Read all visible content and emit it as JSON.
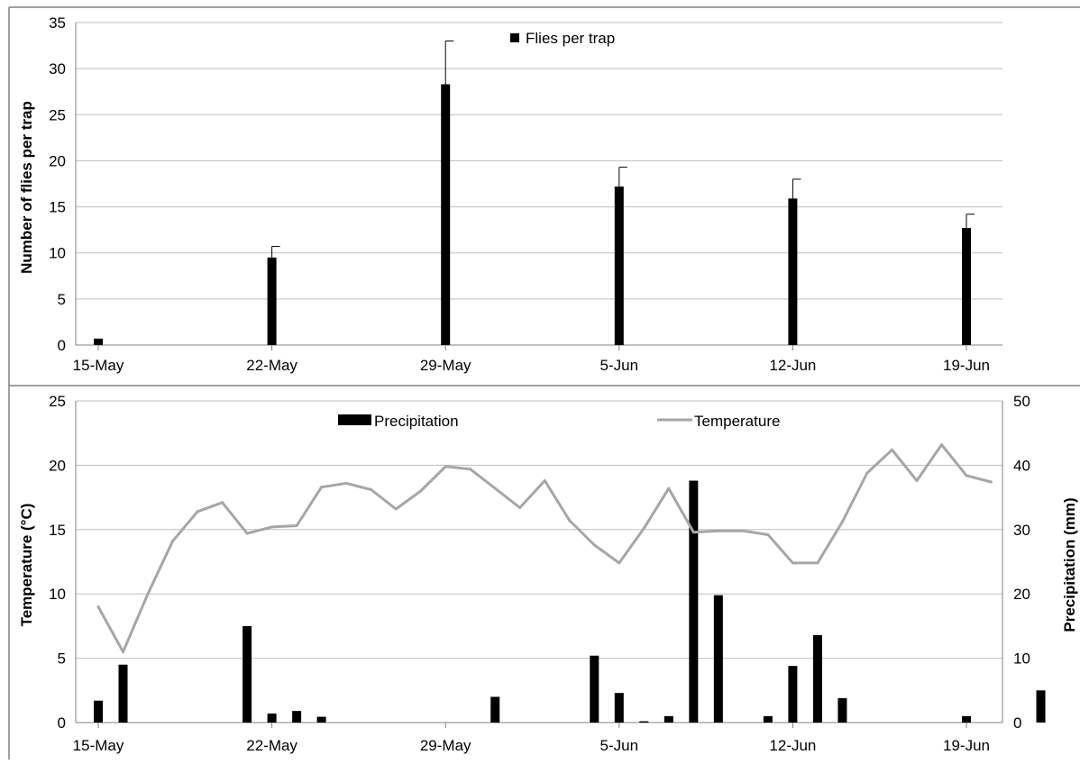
{
  "chart_data": [
    {
      "type": "bar",
      "title": "",
      "ylabel": "Number of flies per trap",
      "ylim": [
        0,
        35
      ],
      "yticks": [
        0,
        5,
        10,
        15,
        20,
        25,
        30,
        35
      ],
      "xticks": [
        "15-May",
        "22-May",
        "29-May",
        "5-Jun",
        "12-Jun",
        "19-Jun"
      ],
      "legend": {
        "placement": "top-center"
      },
      "grid": true,
      "series": [
        {
          "name": "Flies per trap",
          "color": "#000000",
          "points": [
            {
              "x": "15-May",
              "y": 0.7,
              "error": 0
            },
            {
              "x": "22-May",
              "y": 9.5,
              "error": 1.2
            },
            {
              "x": "29-May",
              "y": 28.3,
              "error": 4.7
            },
            {
              "x": "5-Jun",
              "y": 17.2,
              "error": 2.1
            },
            {
              "x": "12-Jun",
              "y": 15.9,
              "error": 2.1
            },
            {
              "x": "19-Jun",
              "y": 12.7,
              "error": 1.5
            }
          ]
        }
      ]
    },
    {
      "type": "bar+line",
      "title": "",
      "ylabel": "Temperature (°C)",
      "y2label": "Precipitation (mm)",
      "ylim": [
        0,
        25
      ],
      "y2lim": [
        0,
        50
      ],
      "yticks": [
        0,
        5,
        10,
        15,
        20,
        25
      ],
      "y2ticks": [
        0,
        10,
        20,
        30,
        40,
        50
      ],
      "xticks": [
        "15-May",
        "22-May",
        "29-May",
        "5-Jun",
        "12-Jun",
        "19-Jun"
      ],
      "legend": {
        "placement": "top-center"
      },
      "grid": true,
      "series": [
        {
          "name": "Precipitation",
          "kind": "bar",
          "axis": "y2",
          "color": "#000000",
          "points": [
            {
              "x": "15-May",
              "y": 3.4
            },
            {
              "x": "16-May",
              "y": 9.0
            },
            {
              "x": "21-May",
              "y": 15.0
            },
            {
              "x": "22-May",
              "y": 1.4
            },
            {
              "x": "23-May",
              "y": 1.8
            },
            {
              "x": "24-May",
              "y": 0.9
            },
            {
              "x": "31-May",
              "y": 4.0
            },
            {
              "x": "4-Jun",
              "y": 10.4
            },
            {
              "x": "5-Jun",
              "y": 4.6
            },
            {
              "x": "6-Jun",
              "y": 0.2
            },
            {
              "x": "7-Jun",
              "y": 1.0
            },
            {
              "x": "8-Jun",
              "y": 37.6
            },
            {
              "x": "9-Jun",
              "y": 19.8
            },
            {
              "x": "11-Jun",
              "y": 1.0
            },
            {
              "x": "12-Jun",
              "y": 8.8
            },
            {
              "x": "13-Jun",
              "y": 13.6
            },
            {
              "x": "14-Jun",
              "y": 3.8
            },
            {
              "x": "19-Jun",
              "y": 1.0
            },
            {
              "x": "22-Jun",
              "y": 5.0
            }
          ]
        },
        {
          "name": "Temperature",
          "kind": "line",
          "axis": "y",
          "color": "#a6a6a6",
          "points": [
            {
              "x": "15-May",
              "y": 9.0
            },
            {
              "x": "16-May",
              "y": 5.5
            },
            {
              "x": "17-May",
              "y": 10.0
            },
            {
              "x": "18-May",
              "y": 14.1
            },
            {
              "x": "19-May",
              "y": 16.4
            },
            {
              "x": "20-May",
              "y": 17.1
            },
            {
              "x": "21-May",
              "y": 14.7
            },
            {
              "x": "22-May",
              "y": 15.2
            },
            {
              "x": "23-May",
              "y": 15.3
            },
            {
              "x": "24-May",
              "y": 18.3
            },
            {
              "x": "25-May",
              "y": 18.6
            },
            {
              "x": "26-May",
              "y": 18.1
            },
            {
              "x": "27-May",
              "y": 16.6
            },
            {
              "x": "28-May",
              "y": 18.0
            },
            {
              "x": "29-May",
              "y": 19.9
            },
            {
              "x": "30-May",
              "y": 19.7
            },
            {
              "x": "31-May",
              "y": 18.2
            },
            {
              "x": "1-Jun",
              "y": 16.7
            },
            {
              "x": "2-Jun",
              "y": 18.8
            },
            {
              "x": "3-Jun",
              "y": 15.7
            },
            {
              "x": "4-Jun",
              "y": 13.8
            },
            {
              "x": "5-Jun",
              "y": 12.4
            },
            {
              "x": "6-Jun",
              "y": 15.1
            },
            {
              "x": "7-Jun",
              "y": 18.2
            },
            {
              "x": "8-Jun",
              "y": 14.8
            },
            {
              "x": "9-Jun",
              "y": 14.9
            },
            {
              "x": "10-Jun",
              "y": 14.9
            },
            {
              "x": "11-Jun",
              "y": 14.6
            },
            {
              "x": "12-Jun",
              "y": 12.4
            },
            {
              "x": "13-Jun",
              "y": 12.4
            },
            {
              "x": "14-Jun",
              "y": 15.6
            },
            {
              "x": "15-Jun",
              "y": 19.4
            },
            {
              "x": "16-Jun",
              "y": 21.2
            },
            {
              "x": "17-Jun",
              "y": 18.8
            },
            {
              "x": "18-Jun",
              "y": 21.6
            },
            {
              "x": "19-Jun",
              "y": 19.2
            },
            {
              "x": "20-Jun",
              "y": 18.7
            }
          ]
        }
      ]
    }
  ]
}
